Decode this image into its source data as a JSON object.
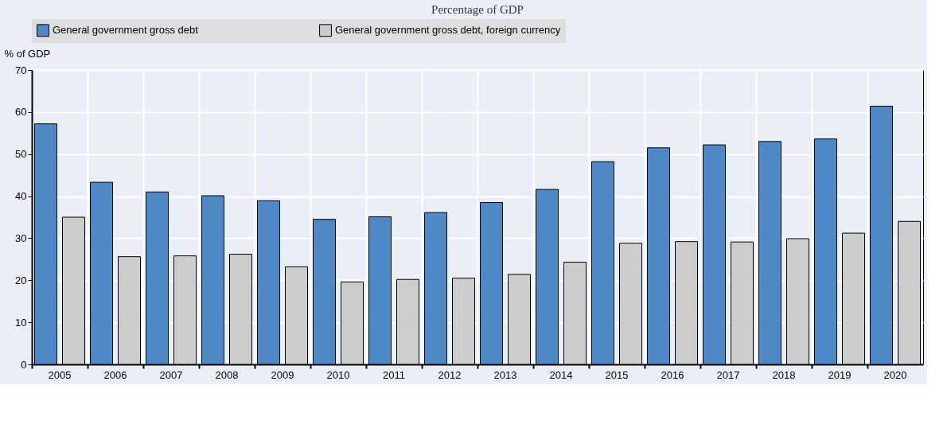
{
  "chart_data": {
    "type": "bar",
    "subtitle": "Percentage of GDP",
    "ylabel": "% of GDP",
    "categories": [
      "2005",
      "2006",
      "2007",
      "2008",
      "2009",
      "2010",
      "2011",
      "2012",
      "2013",
      "2014",
      "2015",
      "2016",
      "2017",
      "2018",
      "2019",
      "2020"
    ],
    "series": [
      {
        "name": "General government gross debt",
        "color": "#4e88c7",
        "values": [
          57.2,
          43.3,
          41.0,
          40.1,
          38.9,
          34.5,
          35.1,
          36.1,
          38.5,
          41.6,
          48.2,
          51.5,
          52.2,
          53.0,
          53.6,
          61.4
        ]
      },
      {
        "name": "General government gross debt, foreign currency",
        "color": "#cccccc",
        "values": [
          35.0,
          25.6,
          25.8,
          26.2,
          23.2,
          19.6,
          20.2,
          20.5,
          21.4,
          24.3,
          28.8,
          29.2,
          29.1,
          29.9,
          31.2,
          34.0
        ]
      }
    ],
    "ylim": [
      0,
      70
    ],
    "yticks": [
      0,
      10,
      20,
      30,
      40,
      50,
      60,
      70
    ],
    "grid": true,
    "legend": "top"
  }
}
